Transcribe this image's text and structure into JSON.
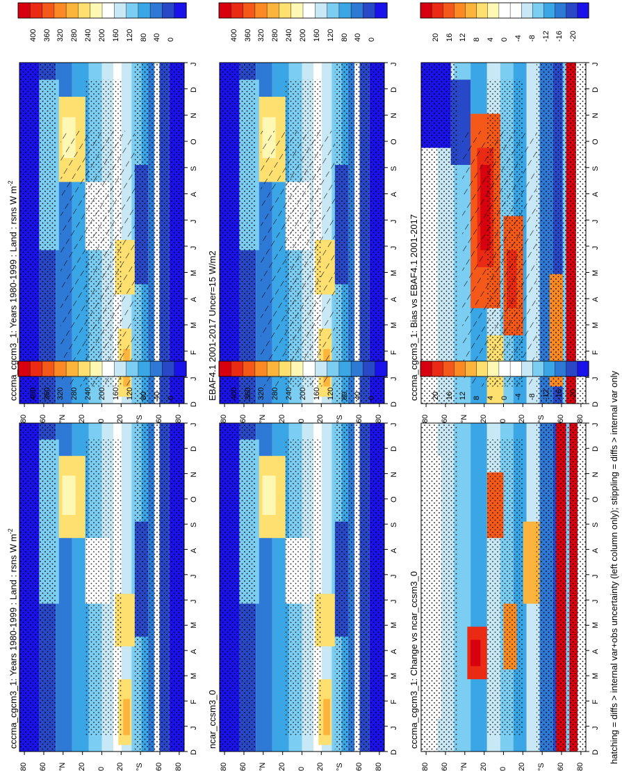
{
  "figure": {
    "footnote": "hatching = diffs > internal var+obs uncertainty (left column only); stippling = diffs > internal var only"
  },
  "chart_data": [
    {
      "type": "heatmap",
      "id": "p11",
      "title": "cccma_cgcm3_1: Years 1980-1999 : Land : rsns W m",
      "title_sup": "-2",
      "x_ticks": [
        "D",
        "J",
        "F",
        "M",
        "A",
        "M",
        "J",
        "J",
        "A",
        "S",
        "O",
        "N",
        "D",
        "J"
      ],
      "y_ticks": [
        "80",
        "60",
        "°N",
        "20",
        "0",
        "20",
        "°S",
        "60",
        "80"
      ],
      "colorbar": {
        "labels": [
          "400",
          "360",
          "320",
          "280",
          "240",
          "200",
          "160",
          "120",
          "80",
          "40",
          "0"
        ],
        "range": [
          0,
          400
        ]
      },
      "overlays": [
        "stippling",
        "hatching"
      ]
    },
    {
      "type": "heatmap",
      "id": "p12",
      "title": "cccma_cgcm3_1: Years 1980-1999 : Land : rsns W m",
      "title_sup": "-2",
      "x_ticks": [
        "D",
        "J",
        "F",
        "M",
        "A",
        "M",
        "J",
        "J",
        "A",
        "S",
        "O",
        "N",
        "D",
        "J"
      ],
      "y_ticks": [
        "80",
        "60",
        "°N",
        "20",
        "0",
        "20",
        "°S",
        "60",
        "80"
      ],
      "colorbar": {
        "labels": [
          "400",
          "360",
          "320",
          "280",
          "240",
          "200",
          "160",
          "120",
          "80",
          "40",
          "0"
        ],
        "range": [
          0,
          400
        ]
      },
      "overlays": [
        "stippling"
      ]
    },
    {
      "type": "heatmap",
      "id": "p21",
      "title": "EBAF4.1 2001-2017 Uncer=15 W/m2",
      "title_sup": "",
      "x_ticks": [
        "D",
        "J",
        "F",
        "M",
        "A",
        "M",
        "J",
        "J",
        "A",
        "S",
        "O",
        "N",
        "D",
        "J"
      ],
      "y_ticks": [
        "80",
        "60",
        "°N",
        "20",
        "0",
        "20",
        "°S",
        "60",
        "80"
      ],
      "colorbar": {
        "labels": [
          "400",
          "360",
          "320",
          "280",
          "240",
          "200",
          "160",
          "120",
          "80",
          "40",
          "0"
        ],
        "range": [
          0,
          400
        ]
      },
      "overlays": [
        "stippling",
        "hatching"
      ]
    },
    {
      "type": "heatmap",
      "id": "p22",
      "title": "ncar_ccsm3_0",
      "title_sup": "",
      "x_ticks": [
        "D",
        "J",
        "F",
        "M",
        "A",
        "M",
        "J",
        "J",
        "A",
        "S",
        "O",
        "N",
        "D",
        "J"
      ],
      "y_ticks": [
        "80",
        "60",
        "°N",
        "20",
        "0",
        "20",
        "°S",
        "60",
        "80"
      ],
      "colorbar": {
        "labels": [
          "400",
          "360",
          "320",
          "280",
          "240",
          "200",
          "160",
          "120",
          "80",
          "40",
          "0"
        ],
        "range": [
          0,
          400
        ]
      },
      "overlays": [
        "stippling"
      ]
    },
    {
      "type": "heatmap",
      "id": "p31",
      "title": "cccma_cgcm3_1: Bias vs EBAF4.1 2001-2017",
      "title_sup": "",
      "x_ticks": [
        "D",
        "J",
        "F",
        "M",
        "A",
        "M",
        "J",
        "J",
        "A",
        "S",
        "O",
        "N",
        "D",
        "J"
      ],
      "y_ticks": [
        "80",
        "60",
        "°N",
        "20",
        "0",
        "20",
        "°S",
        "60",
        "80"
      ],
      "colorbar": {
        "labels": [
          "20",
          "16",
          "12",
          "8",
          "4",
          "0",
          "-4",
          "-8",
          "-12",
          "-16",
          "-20"
        ],
        "range": [
          -20,
          20
        ]
      },
      "overlays": [
        "stippling",
        "hatching"
      ]
    },
    {
      "type": "heatmap",
      "id": "p32",
      "title": "cccma_cgcm3_1: Change vs ncar_ccsm3_0",
      "title_sup": "",
      "x_ticks": [
        "D",
        "J",
        "F",
        "M",
        "A",
        "M",
        "J",
        "J",
        "A",
        "S",
        "O",
        "N",
        "D",
        "J"
      ],
      "y_ticks": [
        "80",
        "60",
        "°N",
        "20",
        "0",
        "20",
        "°S",
        "60",
        "80"
      ],
      "colorbar": {
        "labels": [
          "20",
          "16",
          "12",
          "8",
          "4",
          "0",
          "-4",
          "-8",
          "-12",
          "-16",
          "-20"
        ],
        "range": [
          -20,
          20
        ]
      },
      "overlays": [
        "stippling"
      ]
    }
  ]
}
